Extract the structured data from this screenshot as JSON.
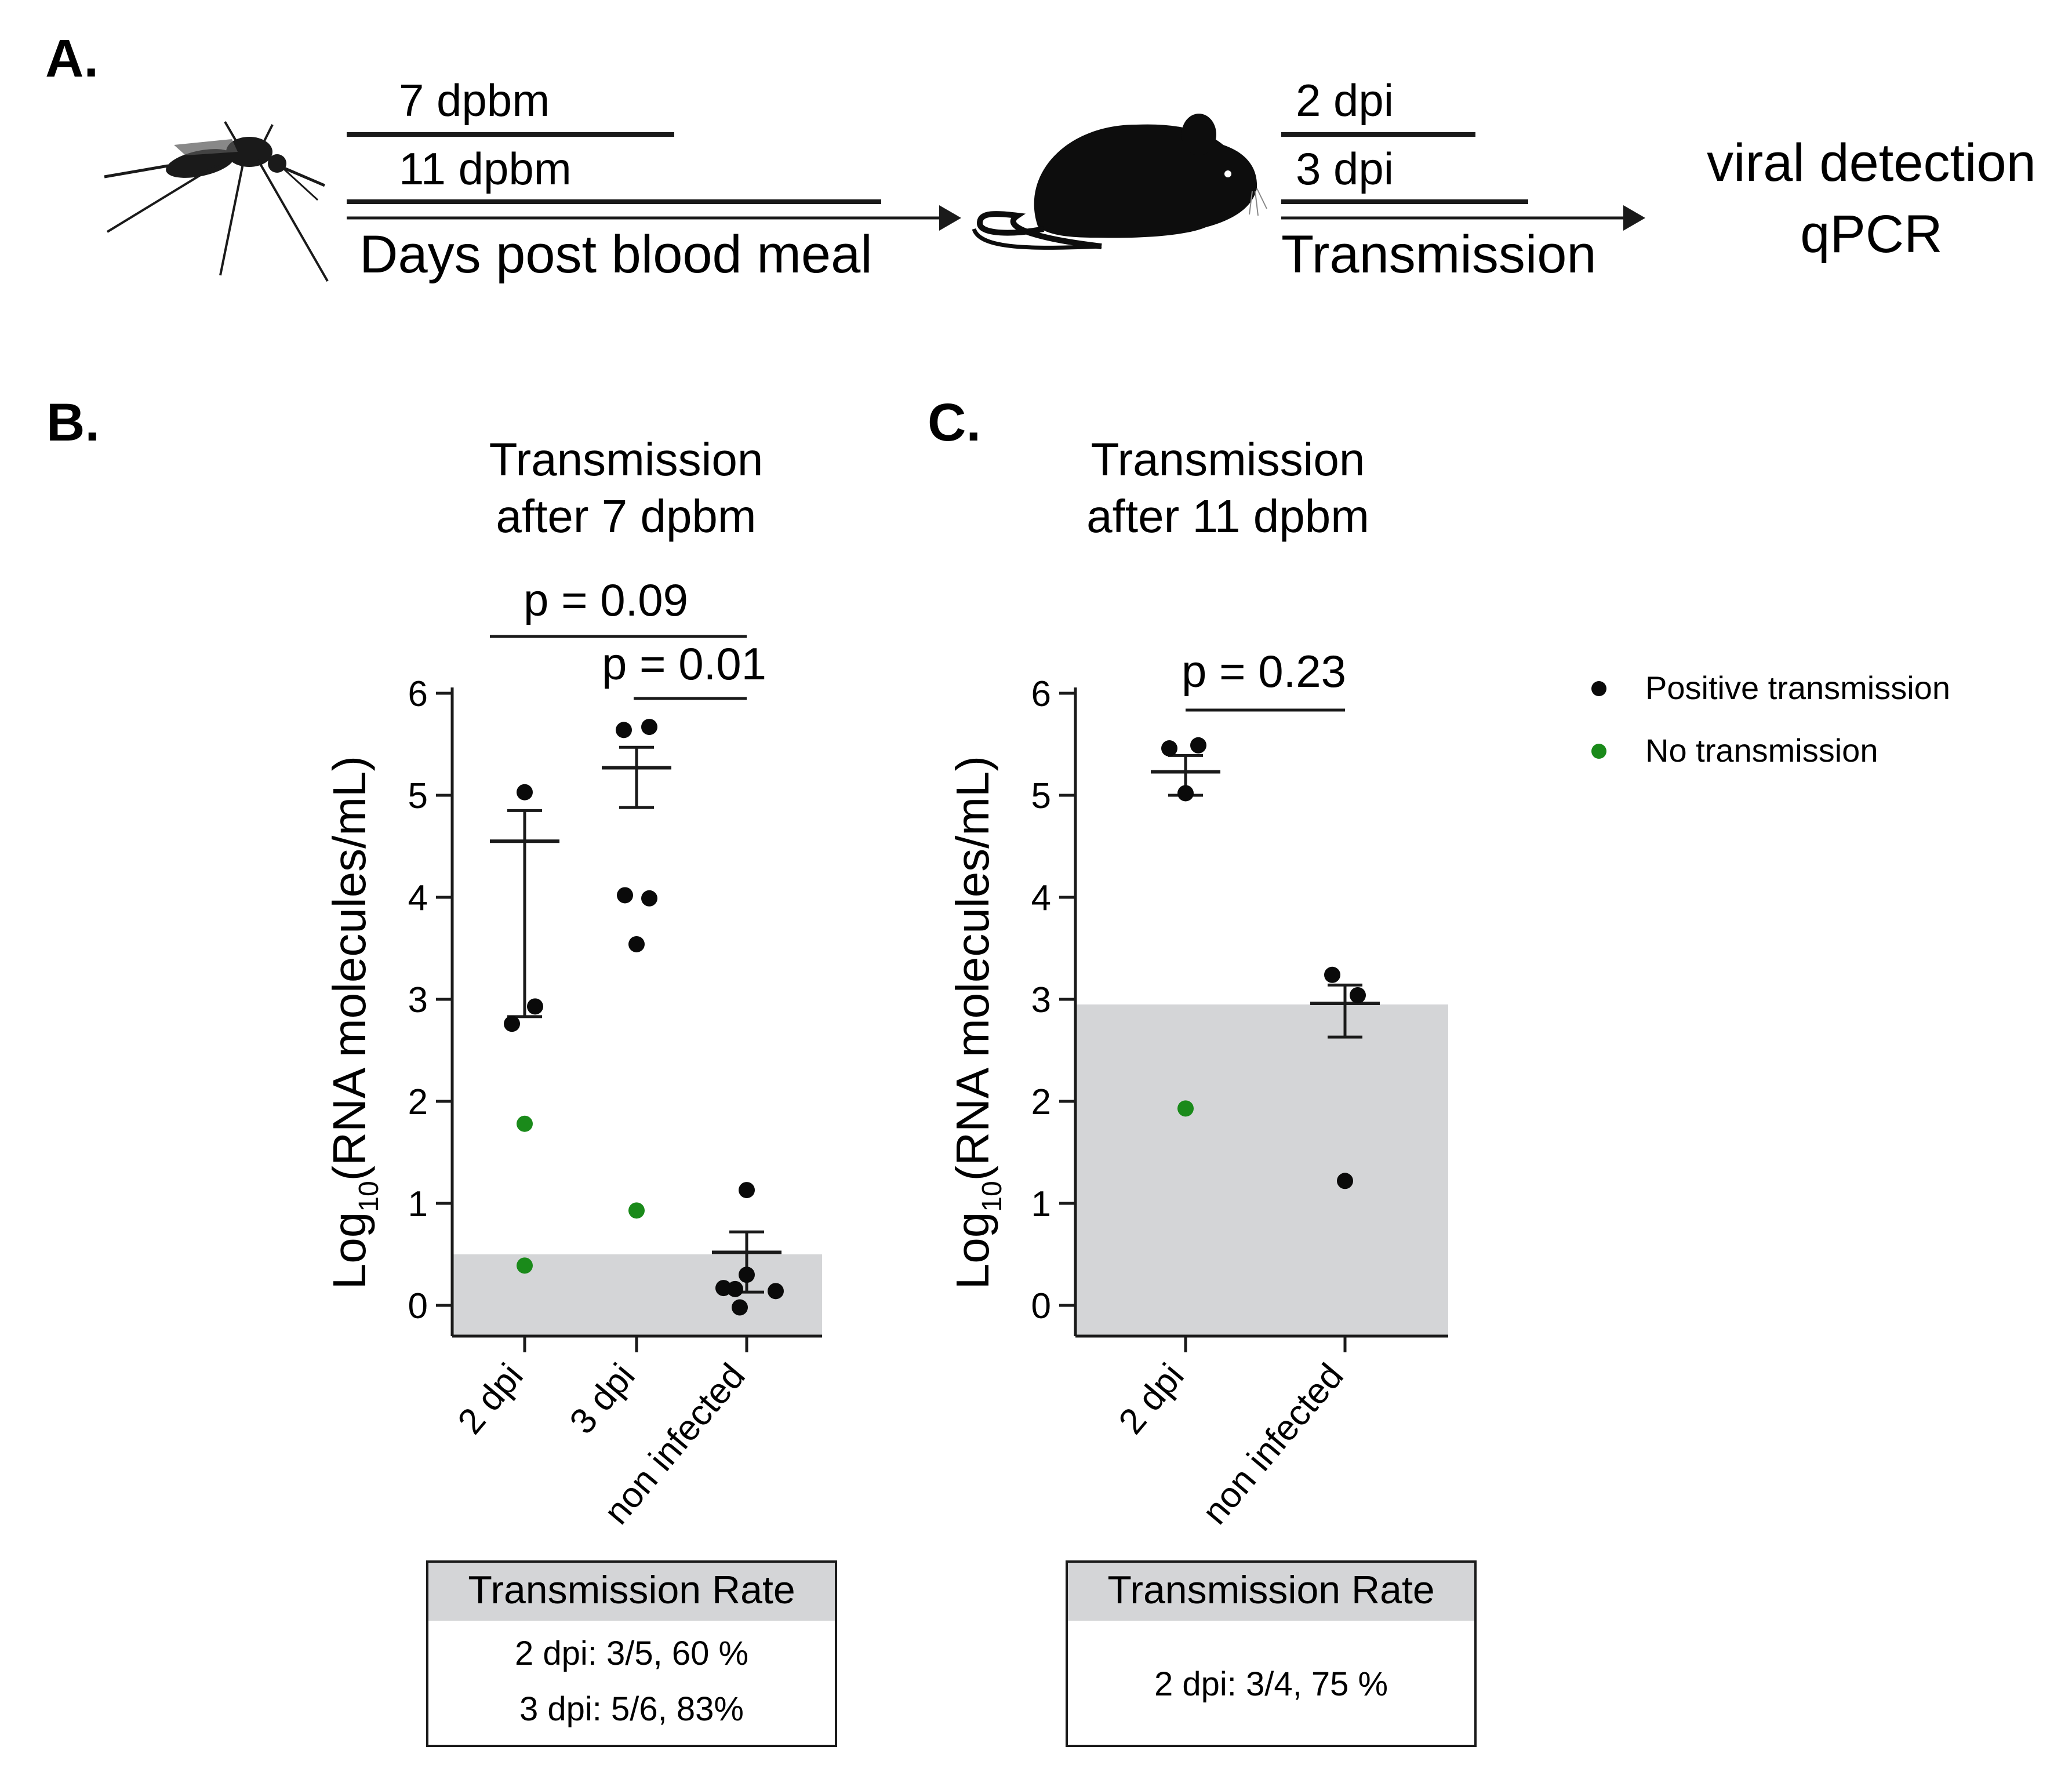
{
  "panel_a": {
    "label": "A.",
    "line_7": "7 dpbm",
    "line_11": "11 dpbm",
    "arrow1_label": "Days post blood meal",
    "line_2dpi": "2 dpi",
    "line_3dpi": "3 dpi",
    "arrow2_label": "Transmission",
    "detect_line1": "viral detection",
    "detect_line2": "qPCR"
  },
  "legend": {
    "positive": "Positive transmission",
    "negative": "No transmission"
  },
  "colors": {
    "positive": "#0a0a0a",
    "negative": "#1a8a1a",
    "shade": "#d4d5d7",
    "box_header": "#d4d5d7"
  },
  "y_axis_label_main": "Log",
  "y_axis_label_sub": "10",
  "y_axis_label_rest": "(RNA molecules/mL)",
  "chart_data": [
    {
      "type": "scatter",
      "panel": "B.",
      "title": [
        "Transmission",
        "after 7 dpbm"
      ],
      "ylabel": "Log10(RNA molecules/mL)",
      "ylim": [
        0,
        6
      ],
      "yticks": [
        0,
        1,
        2,
        3,
        4,
        5,
        6
      ],
      "categories": [
        "2 dpi",
        "3 dpi",
        "non infected"
      ],
      "limit_of_detection": 0.5,
      "groups": [
        {
          "category": "2 dpi",
          "mean": 4.55,
          "err_low": 2.83,
          "err_high": 4.85,
          "points": [
            {
              "y": 5.03,
              "status": "positive"
            },
            {
              "y": 2.93,
              "status": "positive"
            },
            {
              "y": 2.76,
              "status": "positive"
            },
            {
              "y": 1.78,
              "status": "negative"
            },
            {
              "y": 0.39,
              "status": "negative"
            }
          ]
        },
        {
          "category": "3 dpi",
          "mean": 5.27,
          "err_low": 4.88,
          "err_high": 5.47,
          "points": [
            {
              "y": 5.64,
              "status": "positive"
            },
            {
              "y": 5.67,
              "status": "positive"
            },
            {
              "y": 4.02,
              "status": "positive"
            },
            {
              "y": 3.99,
              "status": "positive"
            },
            {
              "y": 3.54,
              "status": "positive"
            },
            {
              "y": 0.93,
              "status": "negative"
            }
          ]
        },
        {
          "category": "non infected",
          "mean": 0.52,
          "err_low": 0.13,
          "err_high": 0.72,
          "points": [
            {
              "y": 1.13,
              "status": "positive"
            },
            {
              "y": 0.3,
              "status": "positive"
            },
            {
              "y": 0.17,
              "status": "positive"
            },
            {
              "y": 0.14,
              "status": "positive"
            },
            {
              "y": 0.16,
              "status": "positive"
            },
            {
              "y": -0.02,
              "status": "positive"
            }
          ]
        }
      ],
      "comparisons": [
        {
          "from": 0,
          "to": 2,
          "label": "p = 0.09"
        },
        {
          "from": 1,
          "to": 2,
          "label": "p = 0.01"
        }
      ],
      "rate_box": {
        "header": "Transmission Rate",
        "lines": [
          "2 dpi: 3/5, 60 %",
          "3 dpi: 5/6, 83%"
        ]
      }
    },
    {
      "type": "scatter",
      "panel": "C.",
      "title": [
        "Transmission",
        "after 11 dpbm"
      ],
      "ylabel": "Log10(RNA molecules/mL)",
      "ylim": [
        0,
        6
      ],
      "yticks": [
        0,
        1,
        2,
        3,
        4,
        5,
        6
      ],
      "categories": [
        "2 dpi",
        "non infected"
      ],
      "limit_of_detection": 2.95,
      "groups": [
        {
          "category": "2 dpi",
          "mean": 5.23,
          "err_low": 5.0,
          "err_high": 5.39,
          "points": [
            {
              "y": 5.46,
              "status": "positive"
            },
            {
              "y": 5.49,
              "status": "positive"
            },
            {
              "y": 5.02,
              "status": "positive"
            },
            {
              "y": 1.93,
              "status": "negative"
            }
          ]
        },
        {
          "category": "non infected",
          "mean": 2.96,
          "err_low": 2.63,
          "err_high": 3.14,
          "points": [
            {
              "y": 3.24,
              "status": "positive"
            },
            {
              "y": 3.04,
              "status": "positive"
            },
            {
              "y": 1.22,
              "status": "positive"
            }
          ]
        }
      ],
      "comparisons": [
        {
          "from": 0,
          "to": 1,
          "label": "p = 0.23"
        }
      ],
      "rate_box": {
        "header": "Transmission Rate",
        "lines": [
          "2 dpi: 3/4, 75 %"
        ]
      }
    }
  ]
}
